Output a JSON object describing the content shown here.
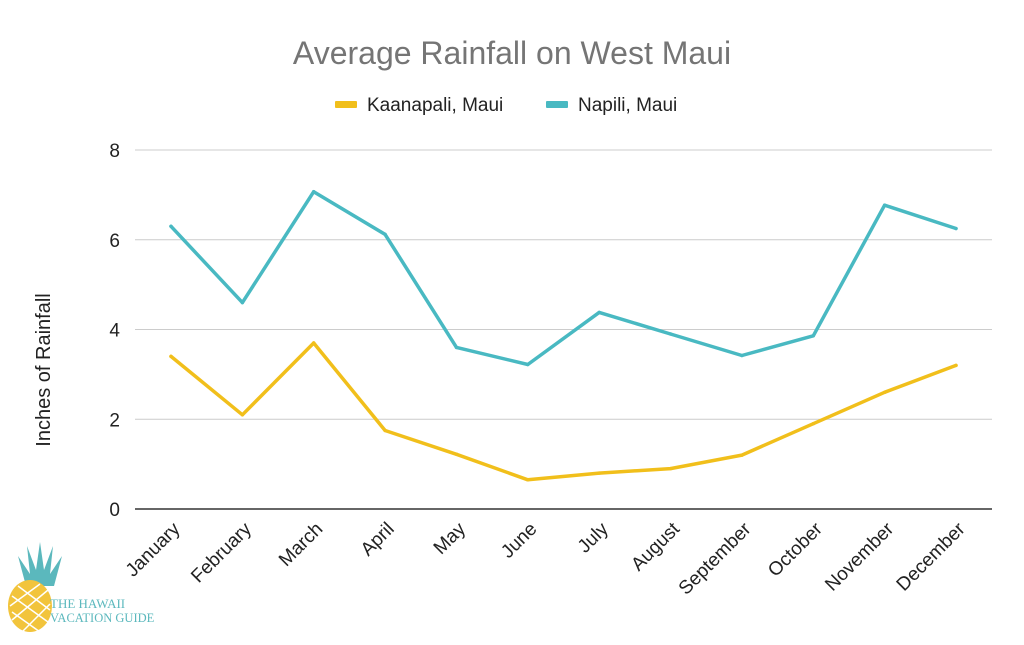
{
  "colors": {
    "kaanapali": "#f1bf1b",
    "napili": "#49b9c2",
    "logo_gold": "#f2c43c",
    "logo_teal": "#5bb8bd"
  },
  "logo": {
    "line1": "THE HAWAII",
    "line2": "VACATION GUIDE",
    "icon": "pineapple-icon"
  },
  "chart_data": {
    "type": "line",
    "title": "Average Rainfall on West Maui",
    "xlabel": "",
    "ylabel": "Inches of Rainfall",
    "ylim": [
      0,
      8
    ],
    "yticks": [
      0,
      2,
      4,
      6,
      8
    ],
    "grid": true,
    "legend_position": "top-center",
    "categories": [
      "January",
      "February",
      "March",
      "April",
      "May",
      "June",
      "July",
      "August",
      "September",
      "October",
      "November",
      "December"
    ],
    "series": [
      {
        "name": "Kaanapali, Maui",
        "color": "#f1bf1b",
        "values": [
          3.4,
          2.1,
          3.7,
          1.75,
          1.22,
          0.65,
          0.8,
          0.9,
          1.2,
          1.9,
          2.6,
          3.2
        ]
      },
      {
        "name": "Napili, Maui",
        "color": "#49b9c2",
        "values": [
          6.3,
          4.6,
          7.07,
          6.12,
          3.6,
          3.22,
          4.38,
          3.9,
          3.42,
          3.86,
          6.77,
          6.25
        ]
      }
    ]
  }
}
